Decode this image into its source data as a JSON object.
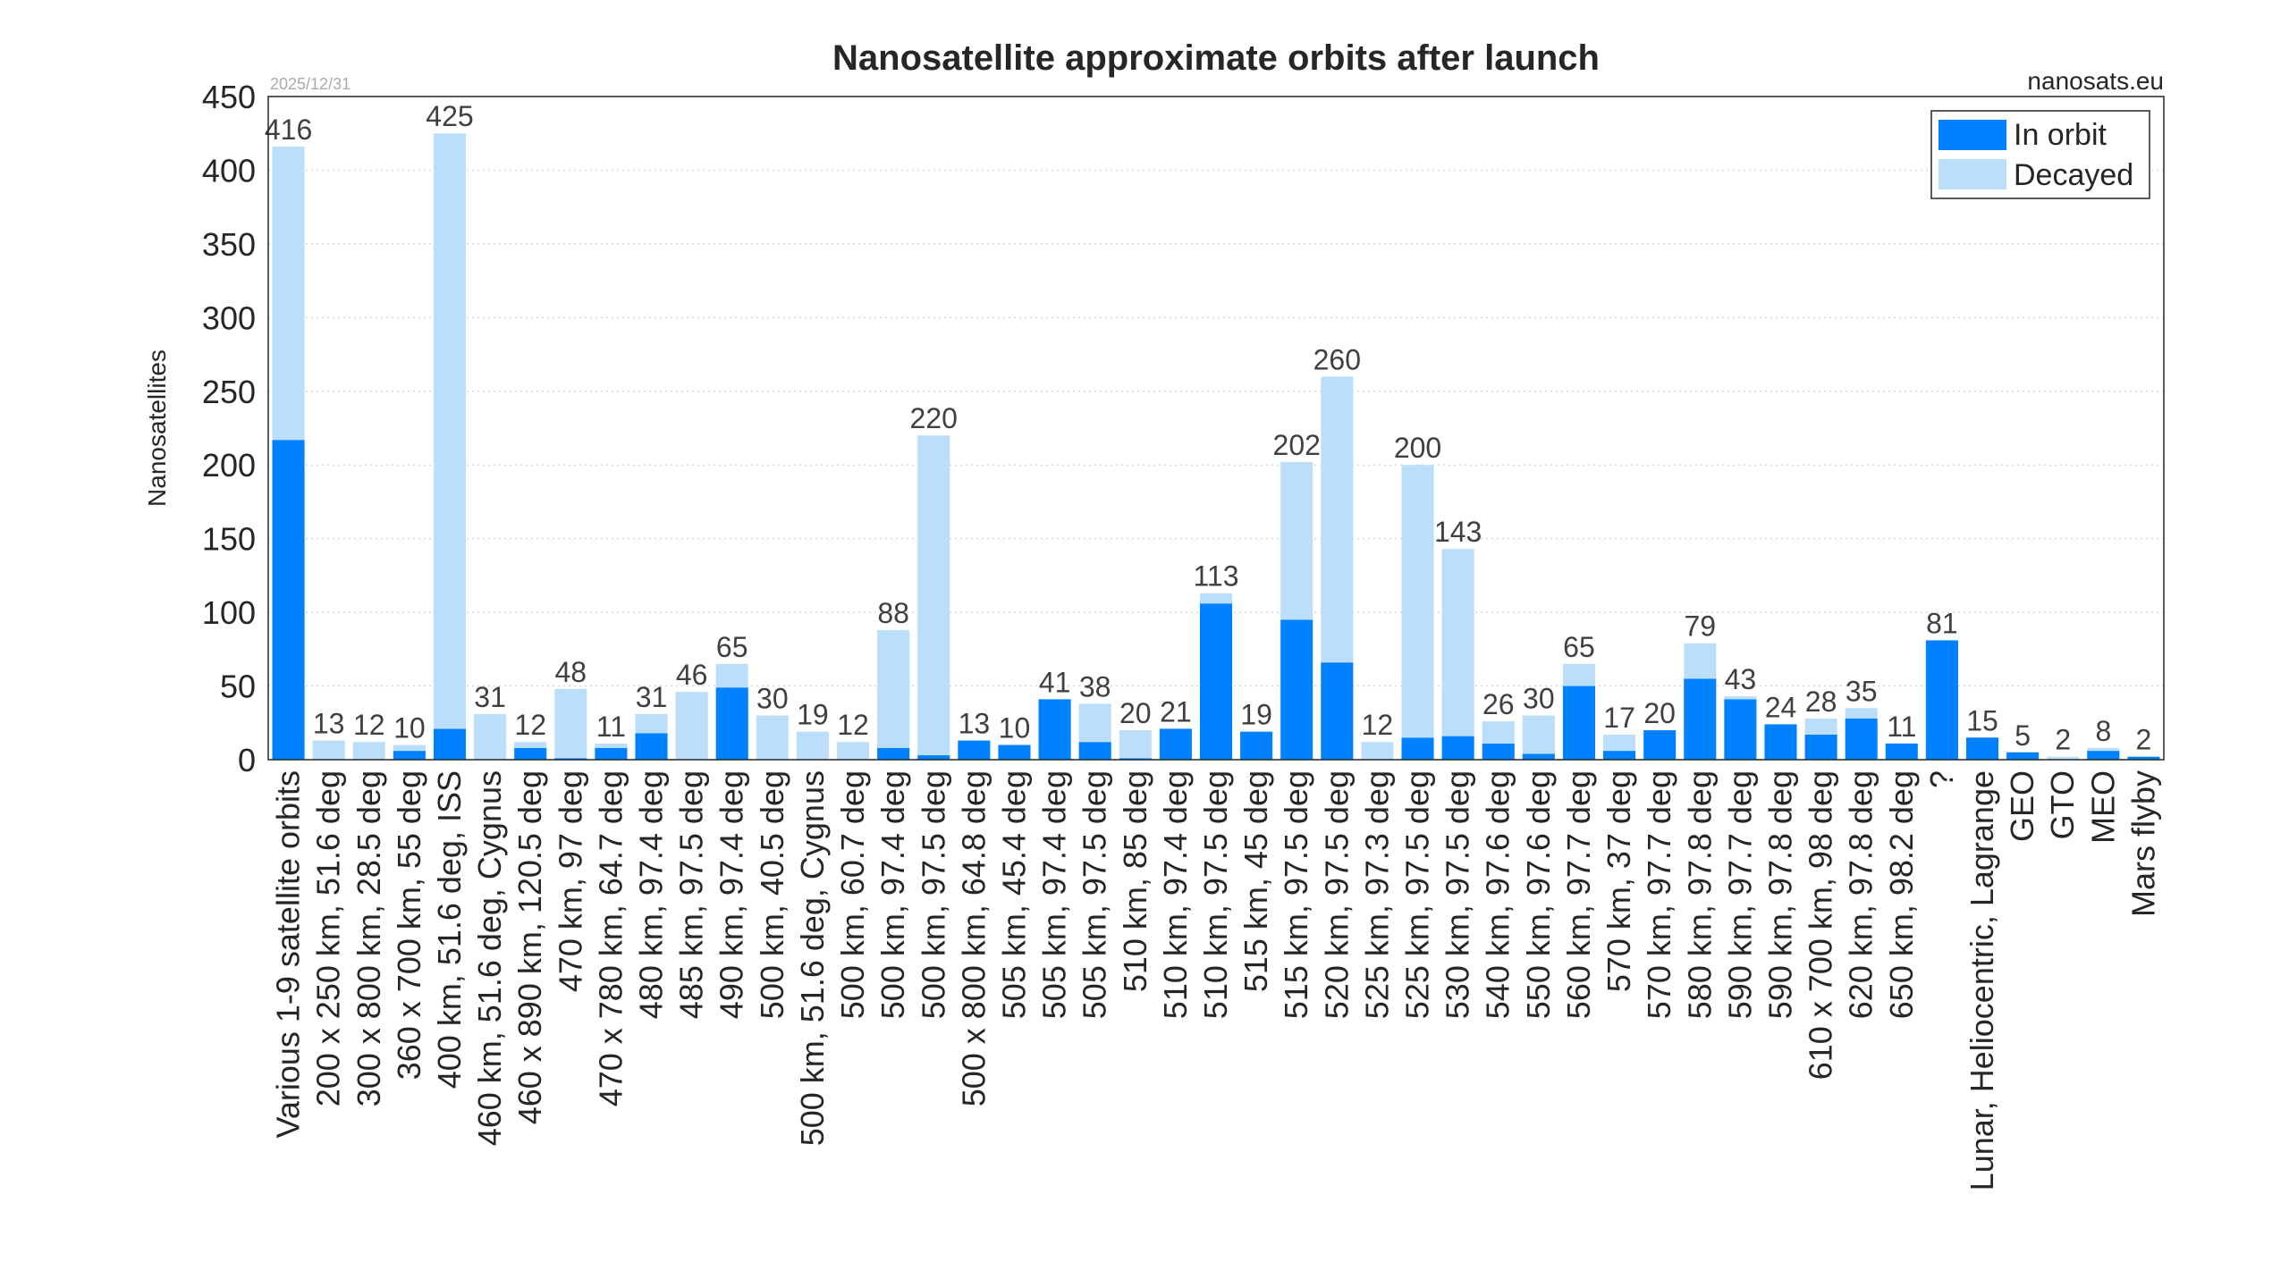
{
  "chart_data": {
    "type": "bar",
    "stacked": true,
    "title": "Nanosatellite approximate orbits after launch",
    "date_label": "2025/12/31",
    "source_label": "nanosats.eu",
    "xlabel": "",
    "ylabel": "Nanosatellites",
    "ylim": [
      0,
      450
    ],
    "yticks": [
      0,
      50,
      100,
      150,
      200,
      250,
      300,
      350,
      400,
      450
    ],
    "grid": true,
    "legend_position": "top-right",
    "categories": [
      "Various 1-9 satellite orbits",
      "200 x 250 km, 51.6 deg",
      "300 x 800 km, 28.5 deg",
      "360 x 700 km, 55 deg",
      "400 km, 51.6 deg, ISS",
      "460 km, 51.6 deg, Cygnus",
      "460 x 890 km, 120.5 deg",
      "470 km, 97 deg",
      "470 x 780 km, 64.7 deg",
      "480 km, 97.4 deg",
      "485 km, 97.5 deg",
      "490 km, 97.4 deg",
      "500 km, 40.5 deg",
      "500 km, 51.6 deg, Cygnus",
      "500 km, 60.7 deg",
      "500 km, 97.4 deg",
      "500 km, 97.5 deg",
      "500 x 800 km, 64.8 deg",
      "505 km, 45.4 deg",
      "505 km, 97.4 deg",
      "505 km, 97.5 deg",
      "510 km, 85 deg",
      "510 km, 97.4 deg",
      "510 km, 97.5 deg",
      "515 km, 45 deg",
      "515 km, 97.5 deg",
      "520 km, 97.5 deg",
      "525 km, 97.3 deg",
      "525 km, 97.5 deg",
      "530 km, 97.5 deg",
      "540 km, 97.6 deg",
      "550 km, 97.6 deg",
      "560 km, 97.7 deg",
      "570 km, 37 deg",
      "570 km, 97.7 deg",
      "580 km, 97.8 deg",
      "590 km, 97.7 deg",
      "590 km, 97.8 deg",
      "610 x 700 km, 98 deg",
      "620 km, 97.8 deg",
      "650 km, 98.2 deg",
      "?",
      "Lunar, Heliocentric, Lagrange",
      "GEO",
      "GTO",
      "MEO",
      "Mars flyby"
    ],
    "totals": [
      416,
      13,
      12,
      10,
      425,
      31,
      12,
      48,
      11,
      31,
      46,
      65,
      30,
      19,
      12,
      88,
      220,
      13,
      10,
      41,
      38,
      20,
      21,
      113,
      19,
      202,
      260,
      12,
      200,
      143,
      26,
      30,
      65,
      17,
      20,
      79,
      43,
      24,
      28,
      35,
      11,
      81,
      15,
      5,
      2,
      8,
      2
    ],
    "series": [
      {
        "name": "In orbit",
        "color": "#0082ff",
        "values": [
          217,
          0,
          0,
          6,
          21,
          0,
          8,
          1,
          8,
          18,
          0,
          49,
          0,
          0,
          0,
          8,
          3,
          13,
          10,
          41,
          12,
          1,
          21,
          106,
          19,
          95,
          66,
          0,
          15,
          16,
          11,
          4,
          50,
          6,
          20,
          55,
          41,
          24,
          17,
          28,
          11,
          81,
          15,
          5,
          0,
          6,
          2
        ]
      },
      {
        "name": "Decayed",
        "color": "#bbdefa",
        "values": [
          199,
          13,
          12,
          4,
          404,
          31,
          4,
          47,
          3,
          13,
          46,
          16,
          30,
          19,
          12,
          80,
          217,
          0,
          0,
          0,
          26,
          19,
          0,
          7,
          0,
          107,
          194,
          12,
          185,
          127,
          15,
          26,
          15,
          11,
          0,
          24,
          2,
          0,
          11,
          7,
          0,
          0,
          0,
          0,
          2,
          2,
          0
        ]
      }
    ]
  }
}
